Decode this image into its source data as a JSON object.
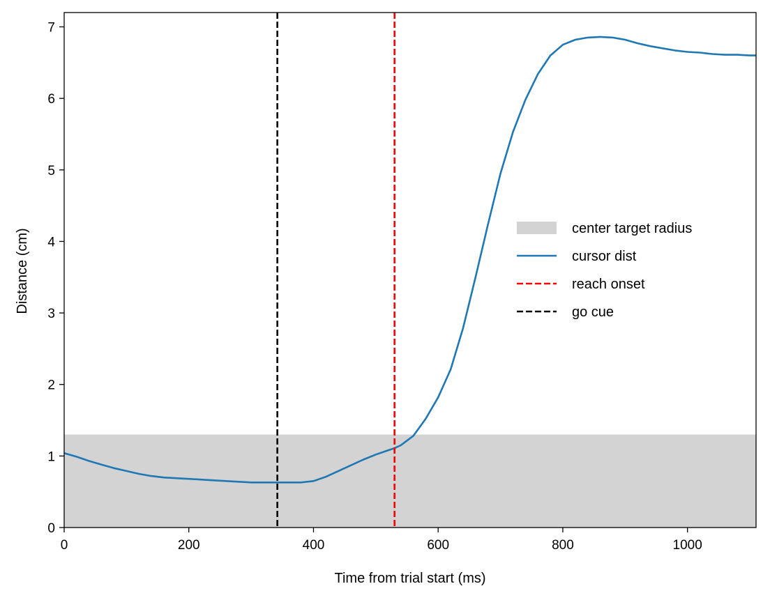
{
  "chart_data": {
    "type": "line",
    "title": "",
    "xlabel": "Time from trial start (ms)",
    "ylabel": "Distance (cm)",
    "xlim": [
      0,
      1110
    ],
    "ylim": [
      0,
      7.2
    ],
    "xticks": [
      0,
      200,
      400,
      600,
      800,
      1000
    ],
    "yticks": [
      0,
      1,
      2,
      3,
      4,
      5,
      6,
      7
    ],
    "grid": false,
    "legend_position": "center-right",
    "shaded_region": {
      "name": "center target radius",
      "y0": 0,
      "y1": 1.3,
      "color": "#d3d3d3"
    },
    "series": [
      {
        "name": "cursor dist",
        "color": "#1f77b4",
        "x": [
          0,
          20,
          40,
          60,
          80,
          100,
          120,
          140,
          160,
          180,
          200,
          220,
          240,
          260,
          280,
          300,
          320,
          340,
          360,
          380,
          400,
          420,
          440,
          460,
          480,
          500,
          520,
          530,
          540,
          560,
          580,
          600,
          620,
          640,
          660,
          680,
          700,
          720,
          740,
          760,
          780,
          800,
          820,
          840,
          860,
          880,
          900,
          920,
          940,
          960,
          980,
          1000,
          1020,
          1040,
          1060,
          1080,
          1100,
          1110
        ],
        "y": [
          1.04,
          0.99,
          0.93,
          0.88,
          0.83,
          0.79,
          0.75,
          0.72,
          0.7,
          0.69,
          0.68,
          0.67,
          0.66,
          0.65,
          0.64,
          0.63,
          0.63,
          0.63,
          0.63,
          0.63,
          0.65,
          0.71,
          0.79,
          0.87,
          0.95,
          1.02,
          1.08,
          1.11,
          1.15,
          1.28,
          1.52,
          1.82,
          2.21,
          2.79,
          3.5,
          4.24,
          4.95,
          5.53,
          5.98,
          6.34,
          6.6,
          6.75,
          6.82,
          6.85,
          6.86,
          6.85,
          6.82,
          6.77,
          6.73,
          6.7,
          6.67,
          6.65,
          6.64,
          6.62,
          6.61,
          6.61,
          6.6,
          6.6
        ]
      },
      {
        "name": "reach onset",
        "type": "vline",
        "x": 530,
        "color": "#ff0000",
        "dash": true
      },
      {
        "name": "go cue",
        "type": "vline",
        "x": 342,
        "color": "#000000",
        "dash": true
      }
    ],
    "legend": [
      {
        "label": "center target radius",
        "kind": "patch",
        "color": "#d3d3d3"
      },
      {
        "label": "cursor dist",
        "kind": "line",
        "color": "#1f77b4"
      },
      {
        "label": "reach onset",
        "kind": "dashed",
        "color": "#ff0000"
      },
      {
        "label": "go cue",
        "kind": "dashed",
        "color": "#000000"
      }
    ]
  }
}
